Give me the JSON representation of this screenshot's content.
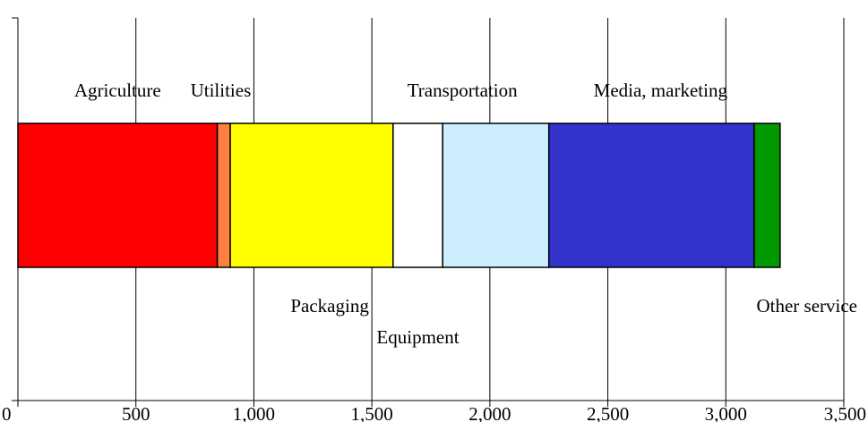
{
  "chart_data": {
    "type": "bar",
    "orientation": "horizontal",
    "stacked": true,
    "title": "",
    "xlabel": "",
    "ylabel": "",
    "xlim": [
      0,
      3500
    ],
    "grid": true,
    "x_ticks": [
      0,
      500,
      1000,
      1500,
      2000,
      2500,
      3000,
      3500
    ],
    "x_tick_labels": [
      "0",
      "500",
      "1,000",
      "1,500",
      "2,000",
      "2,500",
      "3,000",
      "3,500"
    ],
    "series": [
      {
        "name": "Agriculture",
        "value": 845,
        "color": "#ff0000",
        "label_pos": "above"
      },
      {
        "name": "Utilities",
        "value": 55,
        "color": "#ff7f3f",
        "label_pos": "above"
      },
      {
        "name": "Packaging",
        "value": 690,
        "color": "#ffff00",
        "label_pos": "below"
      },
      {
        "name": "Equipment",
        "value": 210,
        "color": "#ffffff",
        "label_pos": "below2"
      },
      {
        "name": "Transportation",
        "value": 450,
        "color": "#cceeff",
        "label_pos": "above"
      },
      {
        "name": "Media, marketing",
        "value": 870,
        "color": "#3333cc",
        "label_pos": "above"
      },
      {
        "name": "Other service",
        "value": 110,
        "color": "#009900",
        "label_pos": "below"
      }
    ]
  }
}
